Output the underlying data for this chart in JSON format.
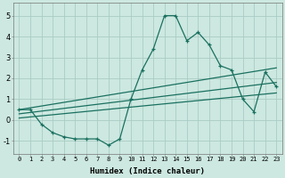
{
  "xlabel": "Humidex (Indice chaleur)",
  "bg_color": "#cce8e0",
  "grid_color": "#aaccc4",
  "line_color": "#1a7060",
  "xlim": [
    -0.5,
    23.5
  ],
  "ylim": [
    -1.6,
    5.6
  ],
  "x_ticks": [
    0,
    1,
    2,
    3,
    4,
    5,
    6,
    7,
    8,
    9,
    10,
    11,
    12,
    13,
    14,
    15,
    16,
    17,
    18,
    19,
    20,
    21,
    22,
    23
  ],
  "y_ticks": [
    -1,
    0,
    1,
    2,
    3,
    4,
    5
  ],
  "main_x": [
    0,
    1,
    2,
    3,
    4,
    5,
    6,
    7,
    8,
    9,
    10,
    11,
    12,
    13,
    14,
    15,
    16,
    17,
    18,
    19,
    20,
    21,
    22,
    23
  ],
  "main_y": [
    0.5,
    0.5,
    -0.2,
    -0.6,
    -0.8,
    -0.9,
    -0.9,
    -0.9,
    -1.2,
    -0.9,
    1.0,
    2.4,
    3.4,
    5.0,
    5.0,
    3.8,
    4.2,
    3.6,
    2.6,
    2.4,
    1.0,
    0.4,
    2.3,
    1.6
  ],
  "diag_lines": [
    {
      "x": [
        0,
        23
      ],
      "y": [
        0.5,
        2.5
      ]
    },
    {
      "x": [
        0,
        23
      ],
      "y": [
        0.3,
        1.8
      ]
    },
    {
      "x": [
        0,
        23
      ],
      "y": [
        0.1,
        1.3
      ]
    }
  ],
  "tick_fontsize": 5,
  "xlabel_fontsize": 6.5,
  "xlabel_fontweight": "bold"
}
